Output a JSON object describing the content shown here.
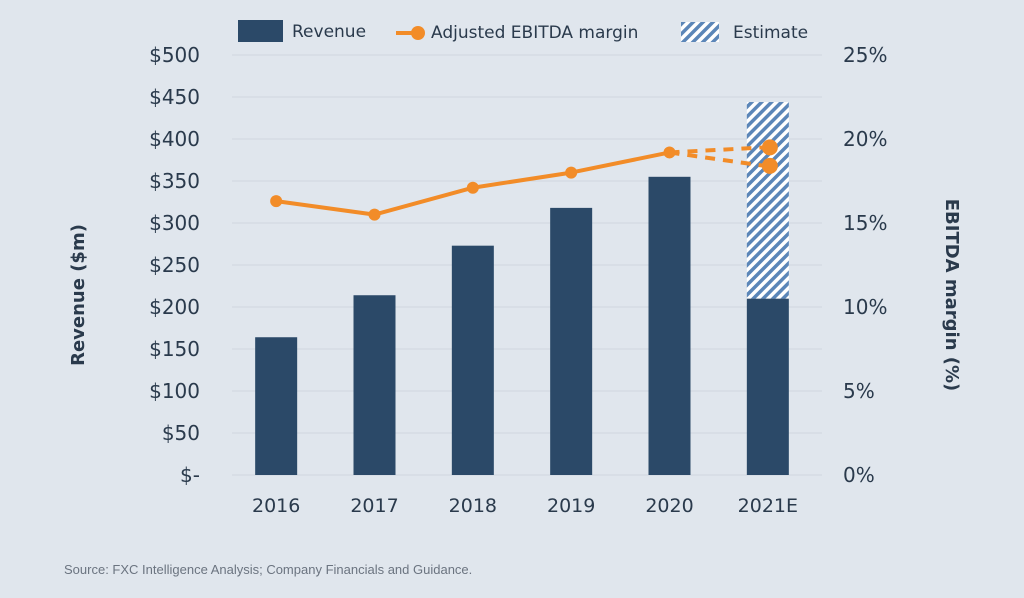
{
  "chart_data": {
    "type": "bar",
    "categories": [
      "2016",
      "2017",
      "2018",
      "2019",
      "2020",
      "2021E"
    ],
    "series": [
      {
        "name": "Revenue",
        "type": "bar",
        "axis": "left",
        "values": [
          164,
          214,
          273,
          318,
          355,
          210
        ]
      },
      {
        "name": "Estimate",
        "type": "bar-stacked-hatched",
        "axis": "left",
        "values": [
          null,
          null,
          null,
          null,
          null,
          234
        ]
      },
      {
        "name": "Adjusted EBITDA margin",
        "type": "line",
        "axis": "right",
        "values": [
          16.3,
          15.5,
          17.1,
          18.0,
          19.2,
          null
        ],
        "estimates_2021E": [
          19.5,
          18.4
        ],
        "estimate_style": "dashed"
      }
    ],
    "ylabel": "Revenue ($m)",
    "y2label": "EBITDA margin (%)",
    "ylim": [
      0,
      500
    ],
    "y2lim": [
      0,
      25
    ],
    "yticks": [
      "$-",
      "$50",
      "$100",
      "$150",
      "$200",
      "$250",
      "$300",
      "$350",
      "$400",
      "$450",
      "$500"
    ],
    "y2ticks": [
      "0%",
      "5%",
      "10%",
      "15%",
      "20%",
      "25%"
    ],
    "grid": true,
    "legend": "top",
    "colors": {
      "revenue": "#2b4968",
      "ebitda": "#f28c28",
      "estimate": "#5b86b8",
      "background": "#e0e6ed"
    }
  },
  "source": "Source: FXC Intelligence Analysis; Company Financials and Guidance."
}
